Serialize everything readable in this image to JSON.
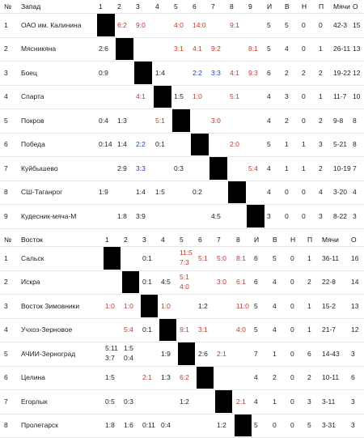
{
  "west": {
    "header": [
      "№",
      "Запад",
      "1",
      "2",
      "3",
      "4",
      "5",
      "6",
      "7",
      "8",
      "9",
      "И",
      "В",
      "Н",
      "П",
      "Мячи",
      "О"
    ],
    "rows": [
      {
        "n": "1",
        "team": "ОАО им. Калинина",
        "cells": {
          "2": [
            {
              "t": "6:2",
              "c": "r"
            }
          ],
          "3": [
            {
              "t": "9:0",
              "c": "r"
            }
          ],
          "5": [
            {
              "t": "4:0",
              "c": "r"
            }
          ],
          "6": [
            {
              "t": "14:0",
              "c": "r"
            }
          ],
          "8": [
            {
              "t": "9:1",
              "c": "r"
            }
          ]
        },
        "stats": [
          "5",
          "5",
          "0",
          "0",
          "42-3",
          "15"
        ]
      },
      {
        "n": "2",
        "team": "Мясникяна",
        "cells": {
          "1": [
            {
              "t": "2:6",
              "c": "k"
            }
          ],
          "5": [
            {
              "t": "3:1",
              "c": "r"
            }
          ],
          "6": [
            {
              "t": "4:1",
              "c": "r"
            }
          ],
          "7": [
            {
              "t": "9:2",
              "c": "r"
            }
          ],
          "9": [
            {
              "t": "8:1",
              "c": "r"
            }
          ]
        },
        "stats": [
          "5",
          "4",
          "0",
          "1",
          "26-11",
          "13"
        ]
      },
      {
        "n": "3",
        "team": "Боец",
        "cells": {
          "1": [
            {
              "t": "0:9",
              "c": "k"
            }
          ],
          "4": [
            {
              "t": "1:4",
              "c": "k"
            }
          ],
          "6": [
            {
              "t": "2:2",
              "c": "b"
            }
          ],
          "7": [
            {
              "t": "3:3",
              "c": "b"
            }
          ],
          "8": [
            {
              "t": "4:1",
              "c": "r"
            }
          ],
          "9": [
            {
              "t": "9:3",
              "c": "r"
            }
          ]
        },
        "stats": [
          "6",
          "2",
          "2",
          "2",
          "19-22",
          "12"
        ]
      },
      {
        "n": "4",
        "team": "Спарта",
        "cells": {
          "3": [
            {
              "t": "4:1",
              "c": "r"
            }
          ],
          "5": [
            {
              "t": "1:5",
              "c": "k"
            }
          ],
          "6": [
            {
              "t": "1:0",
              "c": "r"
            }
          ],
          "8": [
            {
              "t": "5:1",
              "c": "r"
            }
          ]
        },
        "stats": [
          "4",
          "3",
          "0",
          "1",
          "11-7",
          "10"
        ]
      },
      {
        "n": "5",
        "team": "Покров",
        "cells": {
          "1": [
            {
              "t": "0:4",
              "c": "k"
            }
          ],
          "2": [
            {
              "t": "1:3",
              "c": "k"
            }
          ],
          "4": [
            {
              "t": "5:1",
              "c": "r"
            }
          ],
          "7": [
            {
              "t": "3:0",
              "c": "r"
            }
          ]
        },
        "stats": [
          "4",
          "2",
          "0",
          "2",
          "9-8",
          "8"
        ]
      },
      {
        "n": "6",
        "team": "Победа",
        "cells": {
          "1": [
            {
              "t": "0:14",
              "c": "k"
            }
          ],
          "2": [
            {
              "t": "1:4",
              "c": "k"
            }
          ],
          "3": [
            {
              "t": "2:2",
              "c": "b"
            }
          ],
          "4": [
            {
              "t": "0:1",
              "c": "k"
            }
          ],
          "8": [
            {
              "t": "2:0",
              "c": "r"
            }
          ]
        },
        "stats": [
          "5",
          "1",
          "1",
          "3",
          "5-21",
          "8"
        ]
      },
      {
        "n": "7",
        "team": "Куйбышево",
        "cells": {
          "2": [
            {
              "t": "2:9",
              "c": "k"
            }
          ],
          "3": [
            {
              "t": "3:3",
              "c": "b"
            }
          ],
          "5": [
            {
              "t": "0:3",
              "c": "k"
            }
          ],
          "9": [
            {
              "t": "5:4",
              "c": "r"
            }
          ]
        },
        "stats": [
          "4",
          "1",
          "1",
          "2",
          "10-19",
          "7"
        ]
      },
      {
        "n": "8",
        "team": "СШ-Таганрог",
        "cells": {
          "1": [
            {
              "t": "1:9",
              "c": "k"
            }
          ],
          "3": [
            {
              "t": "1:4",
              "c": "k"
            }
          ],
          "4": [
            {
              "t": "1:5",
              "c": "k"
            }
          ],
          "6": [
            {
              "t": "0:2",
              "c": "k"
            }
          ]
        },
        "stats": [
          "4",
          "0",
          "0",
          "4",
          "3-20",
          "4"
        ]
      },
      {
        "n": "9",
        "team": "Кудесник-мяча-М",
        "cells": {
          "2": [
            {
              "t": "1:8",
              "c": "k"
            }
          ],
          "3": [
            {
              "t": "3:9",
              "c": "k"
            }
          ],
          "7": [
            {
              "t": "4:5",
              "c": "k"
            }
          ]
        },
        "stats": [
          "3",
          "0",
          "0",
          "3",
          "8-22",
          "3"
        ]
      }
    ]
  },
  "east": {
    "header": [
      "№",
      "Восток",
      "1",
      "2",
      "3",
      "4",
      "5",
      "6",
      "7",
      "8",
      "И",
      "В",
      "Н",
      "П",
      "Мячи",
      "О"
    ],
    "rows": [
      {
        "n": "1",
        "team": "Сальск",
        "cells": {
          "3": [
            {
              "t": "0:1",
              "c": "k"
            }
          ],
          "5": [
            {
              "t": "11:5",
              "c": "r"
            },
            {
              "t": "7:3",
              "c": "r"
            }
          ],
          "6": [
            {
              "t": "5:1",
              "c": "r"
            }
          ],
          "7": [
            {
              "t": "5:0",
              "c": "r"
            }
          ],
          "8": [
            {
              "t": "8:1",
              "c": "r"
            }
          ]
        },
        "stats": [
          "6",
          "5",
          "0",
          "1",
          "36-11",
          "16"
        ]
      },
      {
        "n": "2",
        "team": "Искра",
        "cells": {
          "3": [
            {
              "t": "0:1",
              "c": "k"
            }
          ],
          "4": [
            {
              "t": "4:5",
              "c": "k"
            }
          ],
          "5": [
            {
              "t": "5:1",
              "c": "r"
            },
            {
              "t": "4:0",
              "c": "r"
            }
          ],
          "7": [
            {
              "t": "3:0",
              "c": "r"
            }
          ],
          "8": [
            {
              "t": "6:1",
              "c": "r"
            }
          ]
        },
        "stats": [
          "6",
          "4",
          "0",
          "2",
          "22-8",
          "14"
        ]
      },
      {
        "n": "3",
        "team": "Восток Зимовники",
        "cells": {
          "1": [
            {
              "t": "1:0",
              "c": "r"
            }
          ],
          "2": [
            {
              "t": "1:0",
              "c": "r"
            }
          ],
          "4": [
            {
              "t": "1:0",
              "c": "r"
            }
          ],
          "6": [
            {
              "t": "1:2",
              "c": "k"
            }
          ],
          "8": [
            {
              "t": "11:0",
              "c": "r"
            }
          ]
        },
        "stats": [
          "5",
          "4",
          "0",
          "1",
          "15-2",
          "13"
        ]
      },
      {
        "n": "4",
        "team": "Учхоз-Зерновое",
        "cells": {
          "2": [
            {
              "t": "5:4",
              "c": "r"
            }
          ],
          "3": [
            {
              "t": "0:1",
              "c": "k"
            }
          ],
          "5": [
            {
              "t": "9:1",
              "c": "r"
            }
          ],
          "6": [
            {
              "t": "3:1",
              "c": "r"
            }
          ],
          "8": [
            {
              "t": "4:0",
              "c": "r"
            }
          ]
        },
        "stats": [
          "5",
          "4",
          "0",
          "1",
          "21-7",
          "12"
        ]
      },
      {
        "n": "5",
        "team": "АЧИИ-Зерноград",
        "cells": {
          "1": [
            {
              "t": "5:11",
              "c": "k"
            },
            {
              "t": "3:7",
              "c": "k"
            }
          ],
          "2": [
            {
              "t": "1:5",
              "c": "k"
            },
            {
              "t": "0:4",
              "c": "k"
            }
          ],
          "4": [
            {
              "t": "1:9",
              "c": "k"
            }
          ],
          "6": [
            {
              "t": "2:6",
              "c": "k"
            }
          ],
          "7": [
            {
              "t": "2:1",
              "c": "r"
            }
          ]
        },
        "stats": [
          "7",
          "1",
          "0",
          "6",
          "14-43",
          "3"
        ]
      },
      {
        "n": "6",
        "team": "Целина",
        "cells": {
          "1": [
            {
              "t": "1:5",
              "c": "k"
            }
          ],
          "3": [
            {
              "t": "2:1",
              "c": "r"
            }
          ],
          "4": [
            {
              "t": "1:3",
              "c": "k"
            }
          ],
          "5": [
            {
              "t": "6:2",
              "c": "r"
            }
          ]
        },
        "stats": [
          "4",
          "2",
          "0",
          "2",
          "10-11",
          "6"
        ]
      },
      {
        "n": "7",
        "team": "Егорлык",
        "cells": {
          "1": [
            {
              "t": "0:5",
              "c": "k"
            }
          ],
          "2": [
            {
              "t": "0:3",
              "c": "k"
            }
          ],
          "5": [
            {
              "t": "1:2",
              "c": "k"
            }
          ],
          "8": [
            {
              "t": "2:1",
              "c": "r"
            }
          ]
        },
        "stats": [
          "4",
          "1",
          "0",
          "3",
          "3-11",
          "3"
        ]
      },
      {
        "n": "8",
        "team": "Пролетарск",
        "cells": {
          "1": [
            {
              "t": "1:8",
              "c": "k"
            }
          ],
          "2": [
            {
              "t": "1:6",
              "c": "k"
            }
          ],
          "3": [
            {
              "t": "0:11",
              "c": "k"
            }
          ],
          "4": [
            {
              "t": "0:4",
              "c": "k"
            }
          ],
          "7": [
            {
              "t": "1:2",
              "c": "k"
            }
          ]
        },
        "stats": [
          "5",
          "0",
          "0",
          "5",
          "3-31",
          "3"
        ]
      }
    ]
  }
}
